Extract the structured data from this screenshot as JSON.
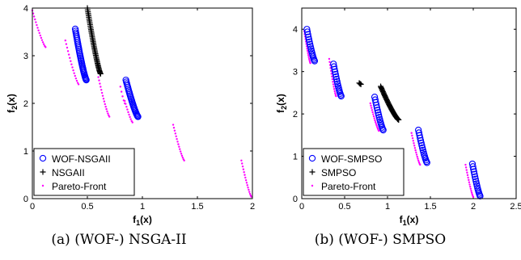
{
  "chart_data": [
    {
      "type": "scatter",
      "caption": "(a) (WOF-) NSGA-II",
      "xlabel_main": "f",
      "xlabel_sub": "1",
      "xlabel_tail": "(x)",
      "ylabel_main": "f",
      "ylabel_sub": "2",
      "ylabel_tail": "(x)",
      "xlim": [
        0,
        2
      ],
      "ylim": [
        0,
        4
      ],
      "xticks": [
        "0",
        "0.5",
        "1",
        "1.5",
        "2"
      ],
      "xtick_values": [
        0,
        0.5,
        1,
        1.5,
        2
      ],
      "yticks": [
        "0",
        "1",
        "2",
        "3",
        "4"
      ],
      "ytick_values": [
        0,
        1,
        2,
        3,
        4
      ],
      "legend_position": "bottom-left",
      "series": [
        {
          "name": "WOF-NSGAII",
          "marker": "circle",
          "color": "#0000ff",
          "segments": [
            {
              "x0": 0.39,
              "x1": 0.49,
              "y0": 3.56,
              "y1": 2.49,
              "n": 34
            },
            {
              "x0": 0.85,
              "x1": 0.96,
              "y0": 2.49,
              "y1": 1.72,
              "n": 26
            }
          ]
        },
        {
          "name": "NSGAII",
          "marker": "plus",
          "color": "#000000",
          "segments": [
            {
              "x0": 0.5,
              "x1": 0.62,
              "y0": 4.0,
              "y1": 2.62,
              "n": 45
            }
          ]
        },
        {
          "name": "Pareto-Front",
          "marker": "dot",
          "color": "#ff00ff",
          "segments": [
            {
              "x0": 0.0,
              "x1": 0.12,
              "y0": 3.95,
              "y1": 3.18,
              "n": 16
            },
            {
              "x0": 0.3,
              "x1": 0.42,
              "y0": 3.32,
              "y1": 2.4,
              "n": 16
            },
            {
              "x0": 0.6,
              "x1": 0.7,
              "y0": 2.55,
              "y1": 1.72,
              "n": 16
            },
            {
              "x0": 0.8,
              "x1": 0.84,
              "y0": 2.35,
              "y1": 2.0,
              "n": 5
            },
            {
              "x0": 0.84,
              "x1": 0.91,
              "y0": 2.05,
              "y1": 1.6,
              "n": 10
            },
            {
              "x0": 1.28,
              "x1": 1.38,
              "y0": 1.55,
              "y1": 0.8,
              "n": 16
            },
            {
              "x0": 1.9,
              "x1": 1.99,
              "y0": 0.8,
              "y1": 0.04,
              "n": 16
            }
          ]
        }
      ]
    },
    {
      "type": "scatter",
      "caption": "(b) (WOF-) SMPSO",
      "xlabel_main": "f",
      "xlabel_sub": "1",
      "xlabel_tail": "(x)",
      "ylabel_main": "f",
      "ylabel_sub": "2",
      "ylabel_tail": "(x)",
      "xlim": [
        0,
        2.5
      ],
      "ylim": [
        0,
        4.5
      ],
      "xticks": [
        "0",
        "0.5",
        "1",
        "1.5",
        "2",
        "2.5"
      ],
      "xtick_values": [
        0,
        0.5,
        1,
        1.5,
        2,
        2.5
      ],
      "yticks": [
        "0",
        "1",
        "2",
        "3",
        "4"
      ],
      "ytick_values": [
        0,
        1,
        2,
        3,
        4
      ],
      "legend_position": "bottom-left",
      "series": [
        {
          "name": "WOF-SMPSO",
          "marker": "circle",
          "color": "#0000ff",
          "segments": [
            {
              "x0": 0.06,
              "x1": 0.15,
              "y0": 4.0,
              "y1": 3.25,
              "n": 16
            },
            {
              "x0": 0.37,
              "x1": 0.46,
              "y0": 3.18,
              "y1": 2.42,
              "n": 16
            },
            {
              "x0": 0.85,
              "x1": 0.95,
              "y0": 2.4,
              "y1": 1.62,
              "n": 16
            },
            {
              "x0": 1.36,
              "x1": 1.46,
              "y0": 1.62,
              "y1": 0.85,
              "n": 16
            },
            {
              "x0": 1.99,
              "x1": 2.08,
              "y0": 0.82,
              "y1": 0.06,
              "n": 16
            }
          ]
        },
        {
          "name": "SMPSO",
          "marker": "plus",
          "color": "#000000",
          "segments": [
            {
              "x0": 0.67,
              "x1": 0.69,
              "y0": 2.73,
              "y1": 2.7,
              "n": 3
            },
            {
              "x0": 0.92,
              "x1": 1.13,
              "y0": 2.65,
              "y1": 1.86,
              "n": 40
            }
          ]
        },
        {
          "name": "Pareto-Front",
          "marker": "dot",
          "color": "#ff00ff",
          "segments": [
            {
              "x0": 0.03,
              "x1": 0.1,
              "y0": 3.95,
              "y1": 3.2,
              "n": 16
            },
            {
              "x0": 0.32,
              "x1": 0.4,
              "y0": 3.3,
              "y1": 2.42,
              "n": 16
            },
            {
              "x0": 0.8,
              "x1": 0.9,
              "y0": 2.25,
              "y1": 1.6,
              "n": 16
            },
            {
              "x0": 1.28,
              "x1": 1.38,
              "y0": 1.55,
              "y1": 0.8,
              "n": 16
            },
            {
              "x0": 1.91,
              "x1": 2.0,
              "y0": 0.8,
              "y1": 0.04,
              "n": 16
            }
          ]
        }
      ]
    }
  ]
}
